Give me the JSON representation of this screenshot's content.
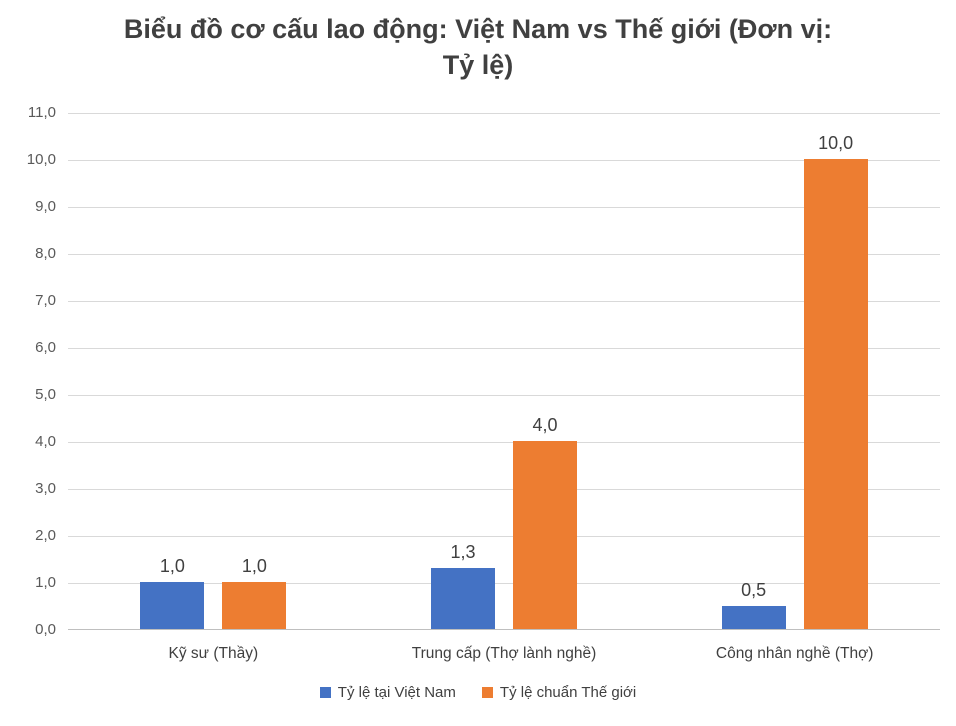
{
  "chart_data": {
    "type": "bar",
    "title": "Biểu đồ cơ cấu lao động: Việt Nam vs Thế giới (Đơn vị:\nTỷ lệ)",
    "categories": [
      "Kỹ sư (Thầy)",
      "Trung cấp (Thợ lành nghề)",
      "Công nhân nghề (Thợ)"
    ],
    "series": [
      {
        "name": "Tỷ lệ tại Việt Nam",
        "color": "#4472C4",
        "values": [
          1.0,
          1.3,
          0.5
        ],
        "labels": [
          "1,0",
          "1,3",
          "0,5"
        ]
      },
      {
        "name": "Tỷ lệ chuẩn Thế giới",
        "color": "#ED7D31",
        "values": [
          1.0,
          4.0,
          10.0
        ],
        "labels": [
          "1,0",
          "4,0",
          "10,0"
        ]
      }
    ],
    "ylim": [
      0,
      11
    ],
    "ytick_step": 1,
    "ytick_labels": [
      "0,0",
      "1,0",
      "2,0",
      "3,0",
      "4,0",
      "5,0",
      "6,0",
      "7,0",
      "8,0",
      "9,0",
      "10,0",
      "11,0"
    ],
    "grid": true,
    "legend_position": "bottom"
  },
  "colors": {
    "grid": "#D9D9D9",
    "axis": "#BFBFBF",
    "title_text": "#404040",
    "tick_text": "#595959",
    "label_text": "#404040"
  }
}
